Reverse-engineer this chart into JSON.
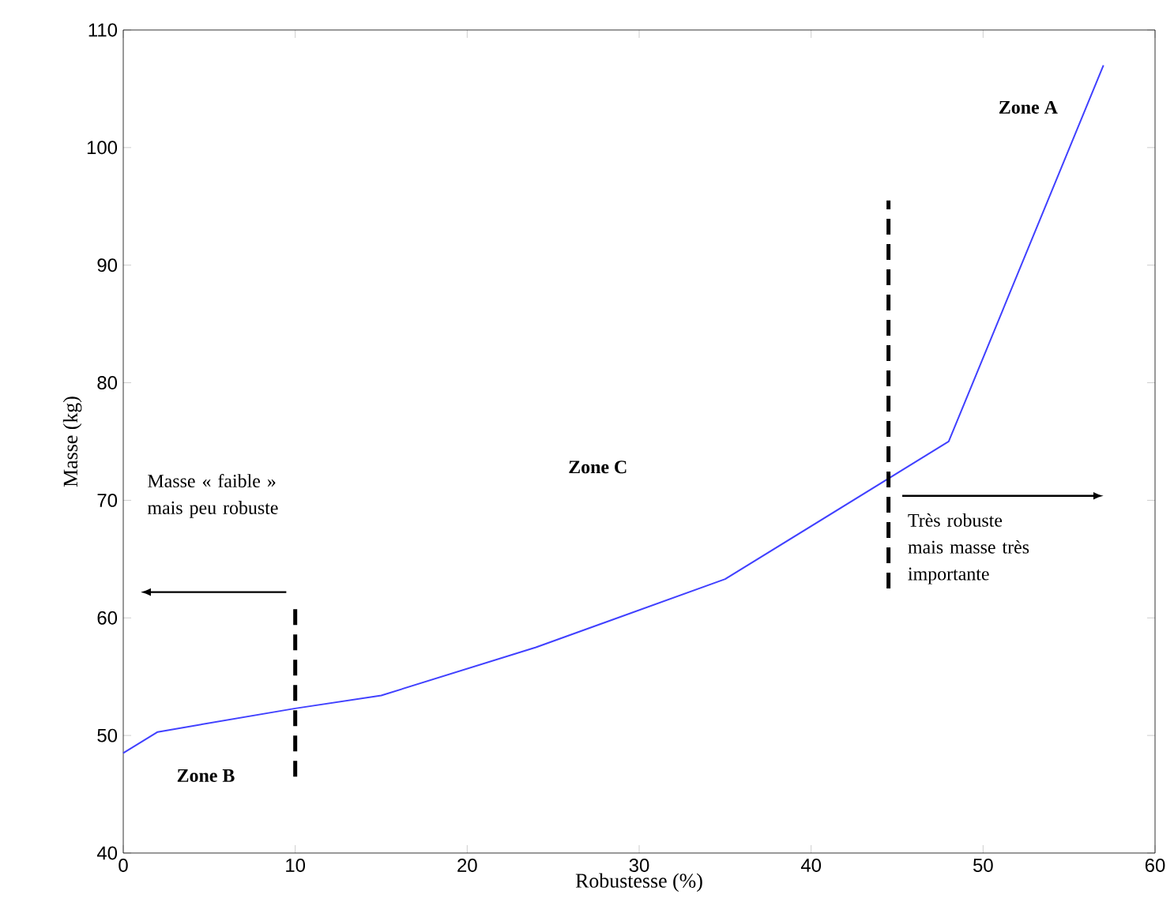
{
  "chart_data": {
    "type": "line",
    "xlabel": "Robustesse (%)",
    "ylabel": "Masse (kg)",
    "xlim": [
      0,
      60
    ],
    "ylim": [
      40,
      110
    ],
    "xticks": [
      0,
      10,
      20,
      30,
      40,
      50,
      60
    ],
    "yticks": [
      40,
      50,
      60,
      70,
      80,
      90,
      100,
      110
    ],
    "series": [
      {
        "color": "#4040ff",
        "x": [
          0,
          2,
          10,
          15,
          24,
          35,
          48,
          57
        ],
        "values": [
          48.5,
          50.3,
          52.3,
          53.4,
          57.5,
          63.3,
          75,
          107
        ]
      },
      {
        "color": "#000000",
        "line_style": "dashed",
        "x": [
          10,
          10
        ],
        "values": [
          46.5,
          61
        ]
      },
      {
        "color": "#000000",
        "line_style": "dashed",
        "x": [
          44.5,
          44.5
        ],
        "values": [
          62.5,
          95.5
        ]
      }
    ],
    "annotations": [
      "Zone A",
      "Zone C",
      "Zone B",
      "Masse « faible » mais peu robuste",
      "Très robuste mais masse très importante"
    ]
  }
}
